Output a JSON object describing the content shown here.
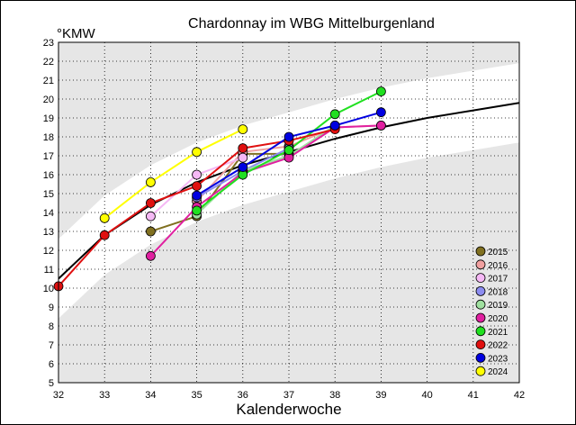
{
  "chart_data": {
    "type": "line",
    "title": "Chardonnay im WBG Mittelburgenland",
    "ylabel": "°KMW",
    "xlabel": "Kalenderwoche",
    "xlim": [
      32,
      42
    ],
    "ylim": [
      5,
      23
    ],
    "x_ticks": [
      32,
      33,
      34,
      35,
      36,
      37,
      38,
      39,
      40,
      41,
      42
    ],
    "y_ticks": [
      5,
      6,
      7,
      8,
      9,
      10,
      11,
      12,
      13,
      14,
      15,
      16,
      17,
      18,
      19,
      20,
      21,
      22,
      23
    ],
    "grid": true,
    "legend_position": "bottom-right",
    "trend": {
      "x": [
        32,
        33,
        34,
        35,
        36,
        37,
        38,
        39,
        40,
        41,
        42
      ],
      "y": [
        10.5,
        12.8,
        14.4,
        15.6,
        16.5,
        17.2,
        17.9,
        18.5,
        19.0,
        19.4,
        19.8
      ]
    },
    "series": [
      {
        "name": "2015",
        "color": "#807020",
        "x": [
          34,
          35,
          36,
          37
        ],
        "y": [
          13.0,
          13.8,
          17.1,
          17.1
        ]
      },
      {
        "name": "2016",
        "color": "#f0a0a0",
        "x": [
          35,
          36,
          37,
          38,
          39
        ],
        "y": [
          14.6,
          17.2,
          17.5,
          18.5,
          18.6
        ]
      },
      {
        "name": "2017",
        "color": "#f5b8f5",
        "x": [
          34,
          35,
          36
        ],
        "y": [
          13.8,
          16.0,
          16.9
        ]
      },
      {
        "name": "2018",
        "color": "#8c8cf0",
        "x": [
          35,
          36,
          37
        ],
        "y": [
          14.8,
          16.2,
          17.4
        ]
      },
      {
        "name": "2019",
        "color": "#a0e0a0",
        "x": [
          35,
          36,
          37,
          38
        ],
        "y": [
          13.9,
          16.2,
          17.0,
          18.6
        ]
      },
      {
        "name": "2020",
        "color": "#e020a0",
        "x": [
          34,
          35,
          36,
          37,
          38,
          39
        ],
        "y": [
          11.7,
          14.3,
          16.1,
          16.9,
          18.5,
          18.6
        ]
      },
      {
        "name": "2021",
        "color": "#20e020",
        "x": [
          35,
          36,
          37,
          38,
          39
        ],
        "y": [
          14.1,
          16.0,
          17.3,
          19.2,
          20.4
        ]
      },
      {
        "name": "2022",
        "color": "#e01010",
        "x": [
          32,
          33,
          34,
          35,
          36,
          37,
          38
        ],
        "y": [
          10.1,
          12.8,
          14.5,
          15.4,
          17.4,
          17.8,
          18.4
        ]
      },
      {
        "name": "2023",
        "color": "#0000e0",
        "x": [
          35,
          36,
          37,
          38,
          39
        ],
        "y": [
          14.9,
          16.4,
          18.0,
          18.6,
          19.3
        ]
      },
      {
        "name": "2024",
        "color": "#ffff00",
        "x": [
          33,
          34,
          35,
          36
        ],
        "y": [
          13.7,
          15.6,
          17.2,
          18.4
        ]
      }
    ]
  }
}
